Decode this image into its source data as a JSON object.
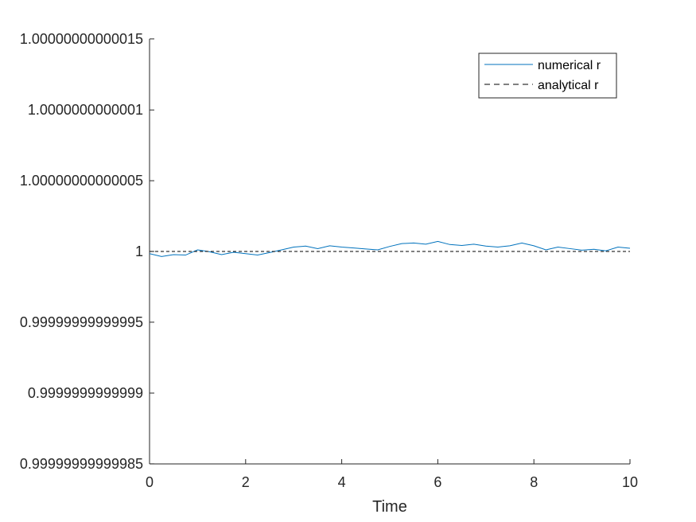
{
  "chart_data": {
    "type": "line",
    "title": "",
    "xlabel": "Time",
    "ylabel": "",
    "xlim": [
      0,
      10
    ],
    "ylim": [
      0.99999999999985,
      1.00000000000015
    ],
    "x_ticks": [
      {
        "value": 0,
        "label": "0"
      },
      {
        "value": 2,
        "label": "2"
      },
      {
        "value": 4,
        "label": "4"
      },
      {
        "value": 6,
        "label": "6"
      },
      {
        "value": 8,
        "label": "8"
      },
      {
        "value": 10,
        "label": "10"
      }
    ],
    "y_ticks": [
      {
        "value": 1.00000000000015,
        "label": "1.00000000000015"
      },
      {
        "value": 1.0000000000001,
        "label": "1.0000000000001"
      },
      {
        "value": 1.00000000000005,
        "label": "1.00000000000005"
      },
      {
        "value": 1.0,
        "label": "1"
      },
      {
        "value": 0.99999999999995,
        "label": "0.99999999999995"
      },
      {
        "value": 0.9999999999999,
        "label": "0.9999999999999"
      },
      {
        "value": 0.99999999999985,
        "label": "0.99999999999985"
      }
    ],
    "grid": false,
    "legend_position": "top-right",
    "series": [
      {
        "name": "numerical r",
        "style": "solid",
        "color": "#0072BD",
        "x": [
          0,
          0.25,
          0.5,
          0.75,
          1.0,
          1.25,
          1.5,
          1.75,
          2.0,
          2.25,
          2.5,
          2.75,
          3.0,
          3.25,
          3.5,
          3.75,
          4.0,
          4.25,
          4.5,
          4.75,
          5.0,
          5.25,
          5.5,
          5.75,
          6.0,
          6.25,
          6.5,
          6.75,
          7.0,
          7.25,
          7.5,
          7.75,
          8.0,
          8.25,
          8.5,
          8.75,
          9.0,
          9.25,
          9.5,
          9.75,
          10.0
        ],
        "y": [
          0.9999999999999984,
          0.9999999999999964,
          0.9999999999999978,
          0.9999999999999974,
          1.000000000000001,
          0.9999999999999998,
          0.9999999999999978,
          0.9999999999999994,
          0.9999999999999984,
          0.9999999999999974,
          0.9999999999999992,
          1.000000000000001,
          1.000000000000003,
          1.0000000000000038,
          1.000000000000002,
          1.000000000000004,
          1.000000000000003,
          1.0000000000000024,
          1.0000000000000018,
          1.000000000000001,
          1.0000000000000036,
          1.0000000000000056,
          1.000000000000006,
          1.000000000000005,
          1.000000000000007,
          1.0000000000000049,
          1.0000000000000042,
          1.000000000000005,
          1.0000000000000038,
          1.000000000000003,
          1.000000000000004,
          1.000000000000006,
          1.000000000000004,
          1.000000000000001,
          1.000000000000003,
          1.000000000000002,
          1.0000000000000009,
          1.0000000000000016,
          1.0000000000000004,
          1.000000000000003,
          1.0000000000000022
        ]
      },
      {
        "name": "analytical r",
        "style": "dashed",
        "color": "#000000",
        "x": [
          0,
          10
        ],
        "y": [
          1.0,
          1.0
        ]
      }
    ]
  }
}
